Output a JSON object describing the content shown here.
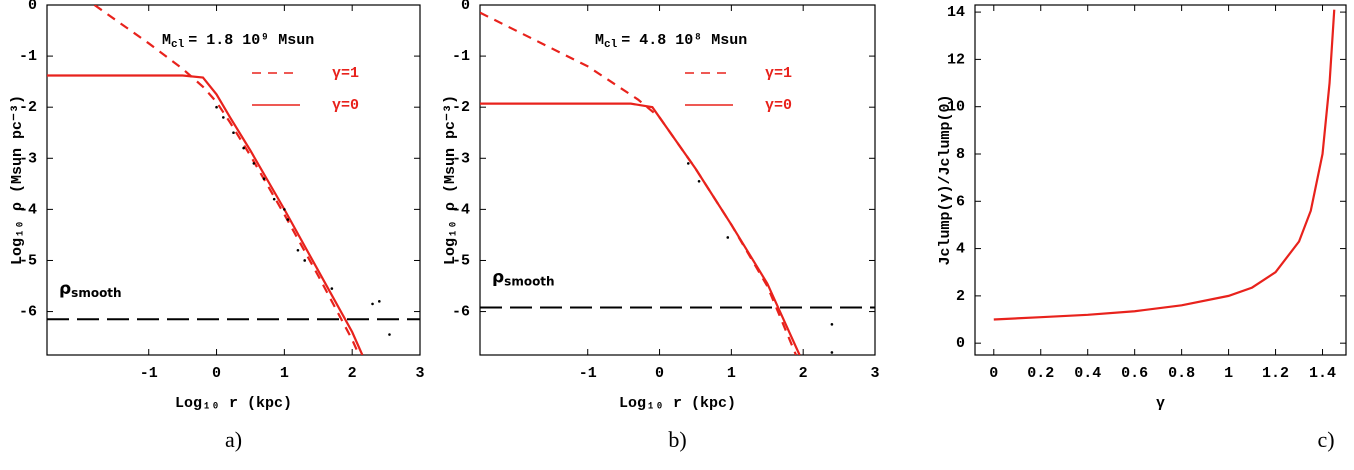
{
  "chart_data": [
    {
      "type": "line",
      "panel_label": "a)",
      "xlabel": "Log₁₀ r (kpc)",
      "ylabel": "Log₁₀ ρ (Msun pc⁻³)",
      "annotation": {
        "symbol": "M",
        "sub": "cl",
        "text": "= 1.8 10⁹ Msun"
      },
      "xlim": [
        -2.5,
        3
      ],
      "ylim": [
        -6.85,
        0
      ],
      "xticks": [
        -1,
        0,
        1,
        2,
        3
      ],
      "yticks": [
        0,
        -1,
        -2,
        -3,
        -4,
        -5,
        -6
      ],
      "series": [
        {
          "name": "γ=1",
          "color": "#e8221c",
          "dash": true,
          "x": [
            -1.8,
            -1,
            -0.5,
            -0.2,
            0,
            0.2,
            0.5,
            1,
            1.5,
            2,
            2.1
          ],
          "values": [
            0,
            -0.75,
            -1.25,
            -1.6,
            -1.9,
            -2.3,
            -2.95,
            -4.1,
            -5.3,
            -6.55,
            -6.85
          ]
        },
        {
          "name": "γ=0",
          "color": "#e8221c",
          "dash": false,
          "x": [
            -2.5,
            -0.5,
            -0.2,
            0,
            0.2,
            0.5,
            1,
            1.5,
            2,
            2.15
          ],
          "values": [
            -1.38,
            -1.38,
            -1.42,
            -1.75,
            -2.2,
            -2.85,
            -4.0,
            -5.2,
            -6.4,
            -6.85
          ]
        }
      ],
      "points": {
        "color": "#000000",
        "x": [
          0,
          0.1,
          0.25,
          0.4,
          0.55,
          0.7,
          0.85,
          1.0,
          1.05,
          1.2,
          1.3,
          1.7,
          2.3,
          2.4,
          2.55
        ],
        "values": [
          -2.0,
          -2.2,
          -2.5,
          -2.8,
          -3.1,
          -3.4,
          -3.8,
          -4.0,
          -4.2,
          -4.8,
          -5.0,
          -5.55,
          -5.85,
          -5.8,
          -6.45
        ]
      },
      "reference": {
        "symbol": "ρ",
        "sub": "smooth",
        "value": -6.15,
        "color": "#000000"
      }
    },
    {
      "type": "line",
      "panel_label": "b)",
      "xlabel": "Log₁₀ r (kpc)",
      "ylabel": "Log₁₀ ρ (Msun pc⁻³)",
      "annotation": {
        "symbol": "M",
        "sub": "cl",
        "text": "= 4.8 10⁸ Msun"
      },
      "xlim": [
        -2.5,
        3
      ],
      "ylim": [
        -6.85,
        0
      ],
      "xticks": [
        -1,
        0,
        1,
        2,
        3
      ],
      "yticks": [
        0,
        -1,
        -2,
        -3,
        -4,
        -5,
        -6
      ],
      "series": [
        {
          "name": "γ=1",
          "color": "#e8221c",
          "dash": true,
          "x": [
            -2.5,
            -1,
            -0.3,
            0,
            0.5,
            1,
            1.5,
            1.9
          ],
          "values": [
            -0.15,
            -1.2,
            -1.85,
            -2.2,
            -3.2,
            -4.3,
            -5.5,
            -6.85
          ]
        },
        {
          "name": "γ=0",
          "color": "#e8221c",
          "dash": false,
          "x": [
            -2.5,
            -0.4,
            -0.1,
            0.1,
            0.5,
            1,
            1.5,
            1.95
          ],
          "values": [
            -1.93,
            -1.93,
            -2.0,
            -2.4,
            -3.2,
            -4.3,
            -5.45,
            -6.85
          ]
        }
      ],
      "points": {
        "color": "#000000",
        "x": [
          0.4,
          0.55,
          0.95,
          2.4,
          2.4
        ],
        "values": [
          -3.1,
          -3.45,
          -4.55,
          -6.25,
          -6.8
        ]
      },
      "reference": {
        "symbol": "ρ",
        "sub": "smooth",
        "value": -5.92,
        "color": "#000000"
      }
    },
    {
      "type": "line",
      "panel_label": "c)",
      "xlabel": "γ",
      "ylabel": "Jclump(γ)/Jclump(0)",
      "xlim": [
        -0.08,
        1.5
      ],
      "ylim": [
        -0.5,
        14.3
      ],
      "xticks": [
        0,
        0.2,
        0.4,
        0.6,
        0.8,
        1,
        1.2,
        1.4
      ],
      "yticks": [
        0,
        2,
        4,
        6,
        8,
        10,
        12,
        14
      ],
      "series": [
        {
          "color": "#e8221c",
          "dash": false,
          "x": [
            0,
            0.2,
            0.4,
            0.6,
            0.8,
            1.0,
            1.1,
            1.2,
            1.3,
            1.35,
            1.4,
            1.43,
            1.45
          ],
          "values": [
            1,
            1.1,
            1.2,
            1.35,
            1.6,
            2.0,
            2.35,
            3.0,
            4.3,
            5.6,
            8.0,
            11,
            14.1
          ]
        }
      ]
    }
  ]
}
